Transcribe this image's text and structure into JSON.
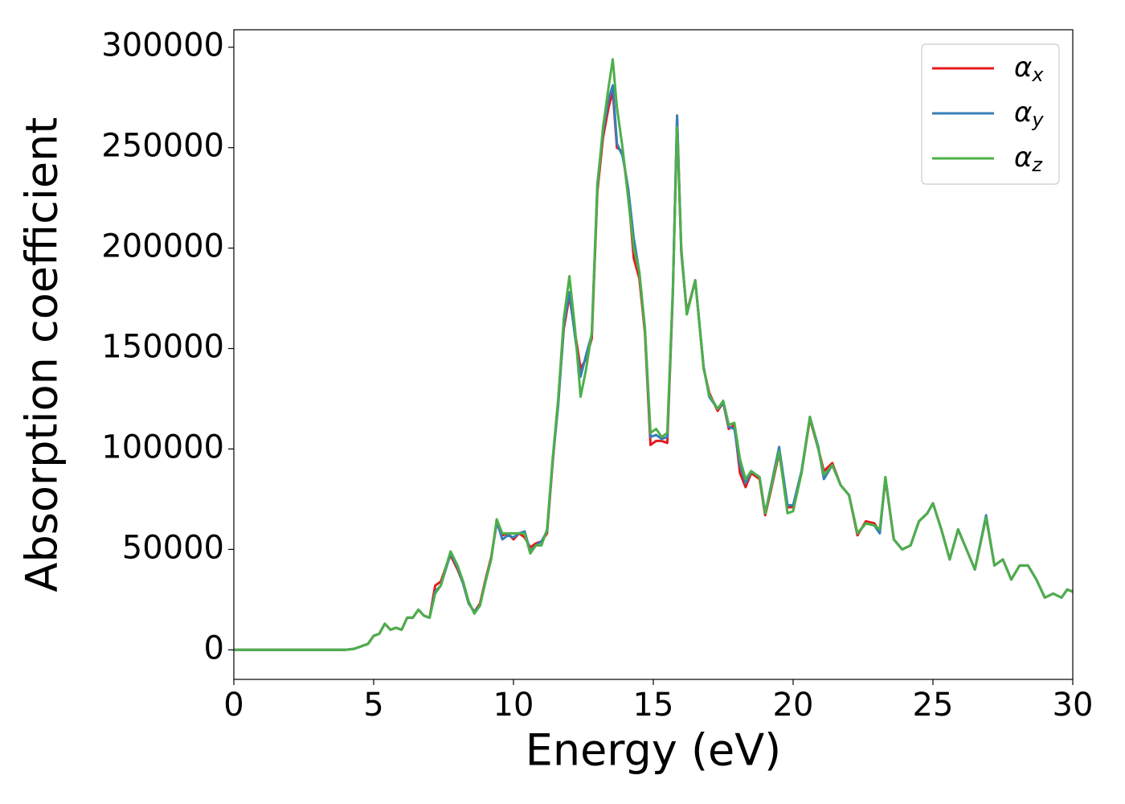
{
  "chart_data": {
    "type": "line",
    "xlabel": "Energy (eV)",
    "ylabel": "Absorption coefficient",
    "xlim": [
      0,
      30
    ],
    "ylim": [
      -14700,
      308700
    ],
    "xticks": [
      0,
      5,
      10,
      15,
      20,
      25,
      30
    ],
    "yticks": [
      0,
      50000,
      100000,
      150000,
      200000,
      250000,
      300000
    ],
    "legend": "upper right",
    "grid": false,
    "x": [
      0,
      1,
      2,
      3,
      4,
      4.3,
      4.5,
      4.8,
      5.0,
      5.2,
      5.4,
      5.6,
      5.8,
      6.0,
      6.2,
      6.4,
      6.6,
      6.8,
      7.0,
      7.2,
      7.4,
      7.6,
      7.75,
      8.0,
      8.2,
      8.4,
      8.6,
      8.8,
      9.0,
      9.2,
      9.4,
      9.6,
      9.8,
      10.0,
      10.2,
      10.4,
      10.6,
      10.8,
      11.0,
      11.2,
      11.4,
      11.6,
      11.8,
      12.0,
      12.2,
      12.4,
      12.6,
      12.8,
      13.0,
      13.2,
      13.4,
      13.55,
      13.7,
      13.9,
      14.1,
      14.3,
      14.5,
      14.7,
      14.9,
      15.1,
      15.3,
      15.5,
      15.7,
      15.85,
      16.0,
      16.2,
      16.5,
      16.8,
      17.0,
      17.3,
      17.5,
      17.7,
      17.9,
      18.1,
      18.3,
      18.5,
      18.8,
      19.0,
      19.2,
      19.5,
      19.8,
      20.0,
      20.3,
      20.6,
      20.9,
      21.1,
      21.4,
      21.7,
      22.0,
      22.3,
      22.6,
      22.9,
      23.1,
      23.3,
      23.6,
      23.9,
      24.2,
      24.5,
      24.8,
      25.0,
      25.3,
      25.6,
      25.9,
      26.2,
      26.5,
      26.9,
      27.2,
      27.5,
      27.8,
      28.1,
      28.4,
      28.7,
      29.0,
      29.3,
      29.6,
      29.8,
      30.0
    ],
    "series": [
      {
        "name": "αx",
        "color": "#e41a1c",
        "values": [
          0,
          0,
          0,
          0,
          0,
          500,
          1500,
          3000,
          7000,
          8000,
          13000,
          10000,
          11000,
          10000,
          16000,
          16000,
          20000,
          17000,
          16000,
          32000,
          34000,
          42000,
          47000,
          40000,
          33000,
          23000,
          19000,
          23000,
          35000,
          46000,
          63000,
          57000,
          58000,
          55000,
          58000,
          56000,
          51000,
          53000,
          54000,
          58000,
          93000,
          124000,
          160000,
          176000,
          158000,
          140000,
          145000,
          155000,
          228000,
          255000,
          270000,
          278000,
          250000,
          248000,
          228000,
          195000,
          185000,
          158000,
          102000,
          104000,
          104000,
          103000,
          178000,
          265000,
          198000,
          168000,
          184000,
          140000,
          128000,
          119000,
          123000,
          110000,
          112000,
          88000,
          81000,
          88000,
          85000,
          67000,
          79000,
          98000,
          71000,
          71000,
          88000,
          115000,
          100000,
          89000,
          93000,
          82000,
          77000,
          57000,
          64000,
          63000,
          59000,
          85000,
          55000,
          50000,
          52000,
          64000,
          68000,
          73000,
          60000,
          45000,
          60000,
          50000,
          40000,
          66000,
          42000,
          45000,
          35000,
          42000,
          42000,
          35000,
          26000,
          28000,
          26000,
          30000,
          29000
        ]
      },
      {
        "name": "αy",
        "color": "#377eb8",
        "values": [
          0,
          0,
          0,
          0,
          0,
          500,
          1500,
          3000,
          7000,
          8000,
          13000,
          10000,
          11000,
          10000,
          16000,
          16000,
          20000,
          17000,
          16000,
          29000,
          32000,
          41000,
          48000,
          41000,
          33000,
          23000,
          19000,
          22000,
          34000,
          45000,
          64000,
          55000,
          57000,
          56000,
          58000,
          59000,
          49000,
          52000,
          54000,
          59000,
          94000,
          122000,
          162000,
          178000,
          156000,
          136000,
          147000,
          157000,
          232000,
          258000,
          274000,
          281000,
          252000,
          246000,
          230000,
          205000,
          188000,
          160000,
          106000,
          107000,
          105000,
          106000,
          179000,
          266000,
          199000,
          167000,
          184000,
          141000,
          126000,
          120000,
          123000,
          111000,
          110000,
          92000,
          83000,
          89000,
          86000,
          68000,
          81000,
          101000,
          72000,
          72000,
          89000,
          116000,
          101000,
          85000,
          92000,
          82000,
          77000,
          58000,
          63000,
          62000,
          58000,
          86000,
          55000,
          50000,
          52000,
          64000,
          68000,
          73000,
          60000,
          45000,
          60000,
          50000,
          40000,
          67000,
          42000,
          45000,
          35000,
          42000,
          42000,
          35000,
          26000,
          28000,
          26000,
          30000,
          29000
        ]
      },
      {
        "name": "αz",
        "color": "#4daf4a",
        "values": [
          0,
          0,
          0,
          0,
          0,
          500,
          1500,
          3000,
          7000,
          8000,
          13000,
          10000,
          11000,
          10000,
          16000,
          16000,
          20000,
          17000,
          16000,
          28000,
          32000,
          42000,
          49000,
          42000,
          34000,
          24000,
          18000,
          22000,
          34000,
          45000,
          65000,
          58000,
          58000,
          58000,
          58000,
          58000,
          48000,
          52000,
          52000,
          60000,
          95000,
          125000,
          165000,
          186000,
          160000,
          126000,
          140000,
          158000,
          230000,
          260000,
          280000,
          294000,
          270000,
          250000,
          225000,
          200000,
          188000,
          160000,
          108000,
          110000,
          106000,
          108000,
          180000,
          260000,
          200000,
          167000,
          184000,
          140000,
          127000,
          120000,
          124000,
          112000,
          113000,
          95000,
          85000,
          89000,
          86000,
          68000,
          80000,
          99000,
          68000,
          69000,
          88000,
          116000,
          100000,
          87000,
          92000,
          82000,
          77000,
          58000,
          63000,
          62000,
          60000,
          86000,
          55000,
          50000,
          52000,
          64000,
          68000,
          73000,
          60000,
          45000,
          60000,
          50000,
          40000,
          66000,
          42000,
          45000,
          35000,
          42000,
          42000,
          35000,
          26000,
          28000,
          26000,
          30000,
          29000
        ]
      }
    ]
  }
}
